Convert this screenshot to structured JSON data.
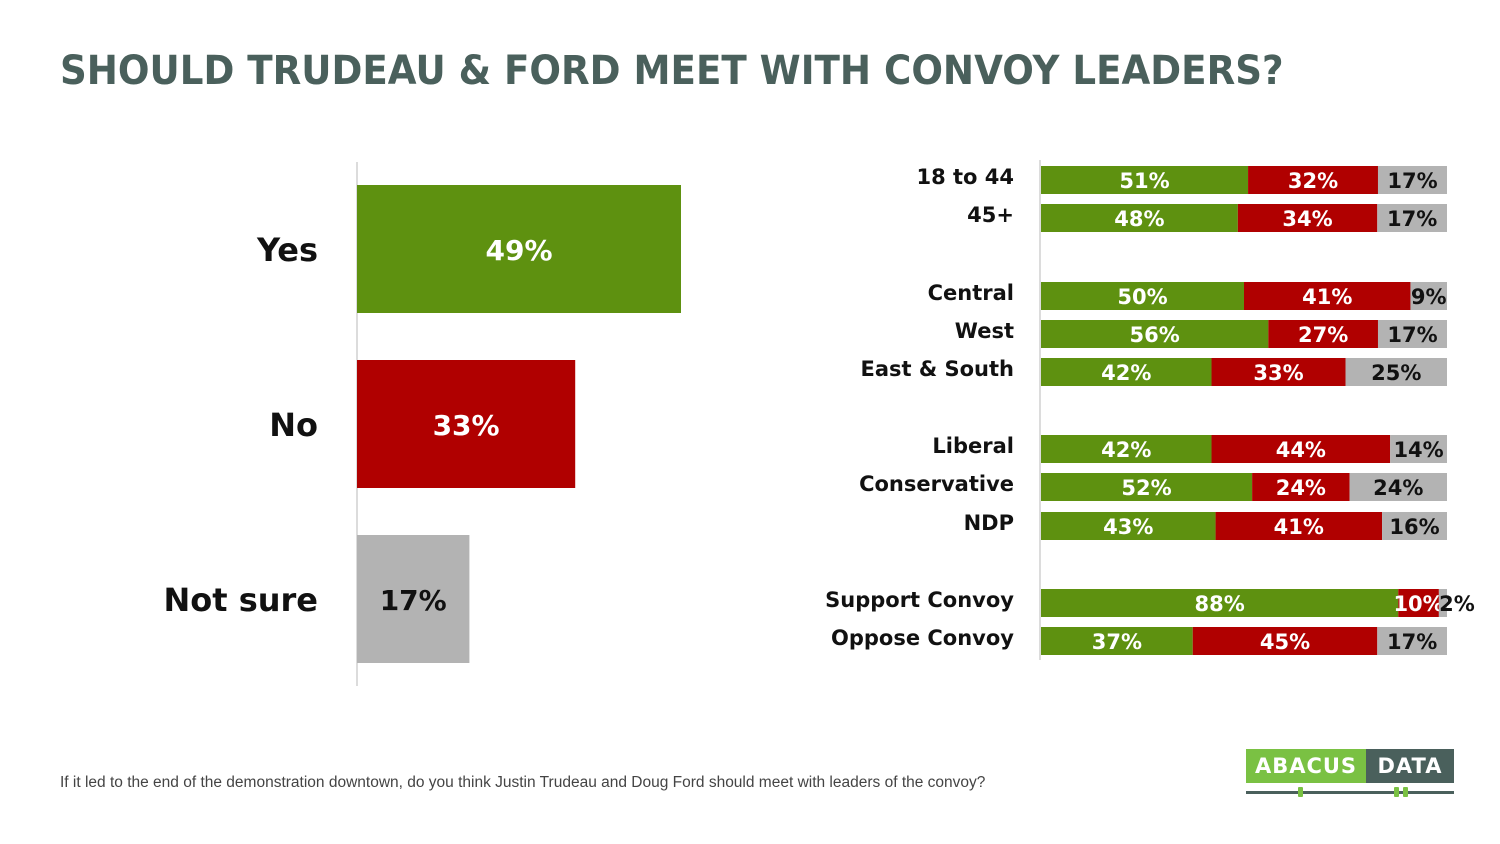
{
  "title": "SHOULD TRUDEAU & FORD MEET WITH CONVOY LEADERS?",
  "footnote": "If it led to the end of the demonstration downtown, do you think Justin Trudeau and Doug Ford should meet with leaders of the convoy?",
  "logo": {
    "left": "ABACUS",
    "right": "DATA"
  },
  "colors": {
    "yes": "#5e9110",
    "no": "#b00000",
    "not_sure": "#b3b3b3",
    "title": "#4a605c"
  },
  "chart_data": [
    {
      "type": "bar",
      "orientation": "horizontal",
      "categories": [
        "Yes",
        "No",
        "Not sure"
      ],
      "values": [
        49,
        33,
        17
      ],
      "value_labels": [
        "49%",
        "33%",
        "17%"
      ],
      "unit": "%",
      "xlim": [
        0,
        100
      ],
      "grid": false
    },
    {
      "type": "bar",
      "orientation": "horizontal",
      "stacked": true,
      "series_names": [
        "Yes",
        "No",
        "Not sure"
      ],
      "groups": [
        {
          "rows": [
            {
              "label": "18 to 44",
              "values": [
                51,
                32,
                17
              ]
            },
            {
              "label": "45+",
              "values": [
                48,
                34,
                17
              ]
            }
          ]
        },
        {
          "rows": [
            {
              "label": "Central",
              "values": [
                50,
                41,
                9
              ]
            },
            {
              "label": "West",
              "values": [
                56,
                27,
                17
              ]
            },
            {
              "label": "East & South",
              "values": [
                42,
                33,
                25
              ]
            }
          ]
        },
        {
          "rows": [
            {
              "label": "Liberal",
              "values": [
                42,
                44,
                14
              ]
            },
            {
              "label": "Conservative",
              "values": [
                52,
                24,
                24
              ]
            },
            {
              "label": "NDP",
              "values": [
                43,
                41,
                16
              ]
            }
          ]
        },
        {
          "rows": [
            {
              "label": "Support Convoy",
              "values": [
                88,
                10,
                2
              ]
            },
            {
              "label": "Oppose Convoy",
              "values": [
                37,
                45,
                17
              ]
            }
          ]
        }
      ],
      "unit": "%",
      "xlim": [
        0,
        100
      ],
      "grid": false
    }
  ]
}
